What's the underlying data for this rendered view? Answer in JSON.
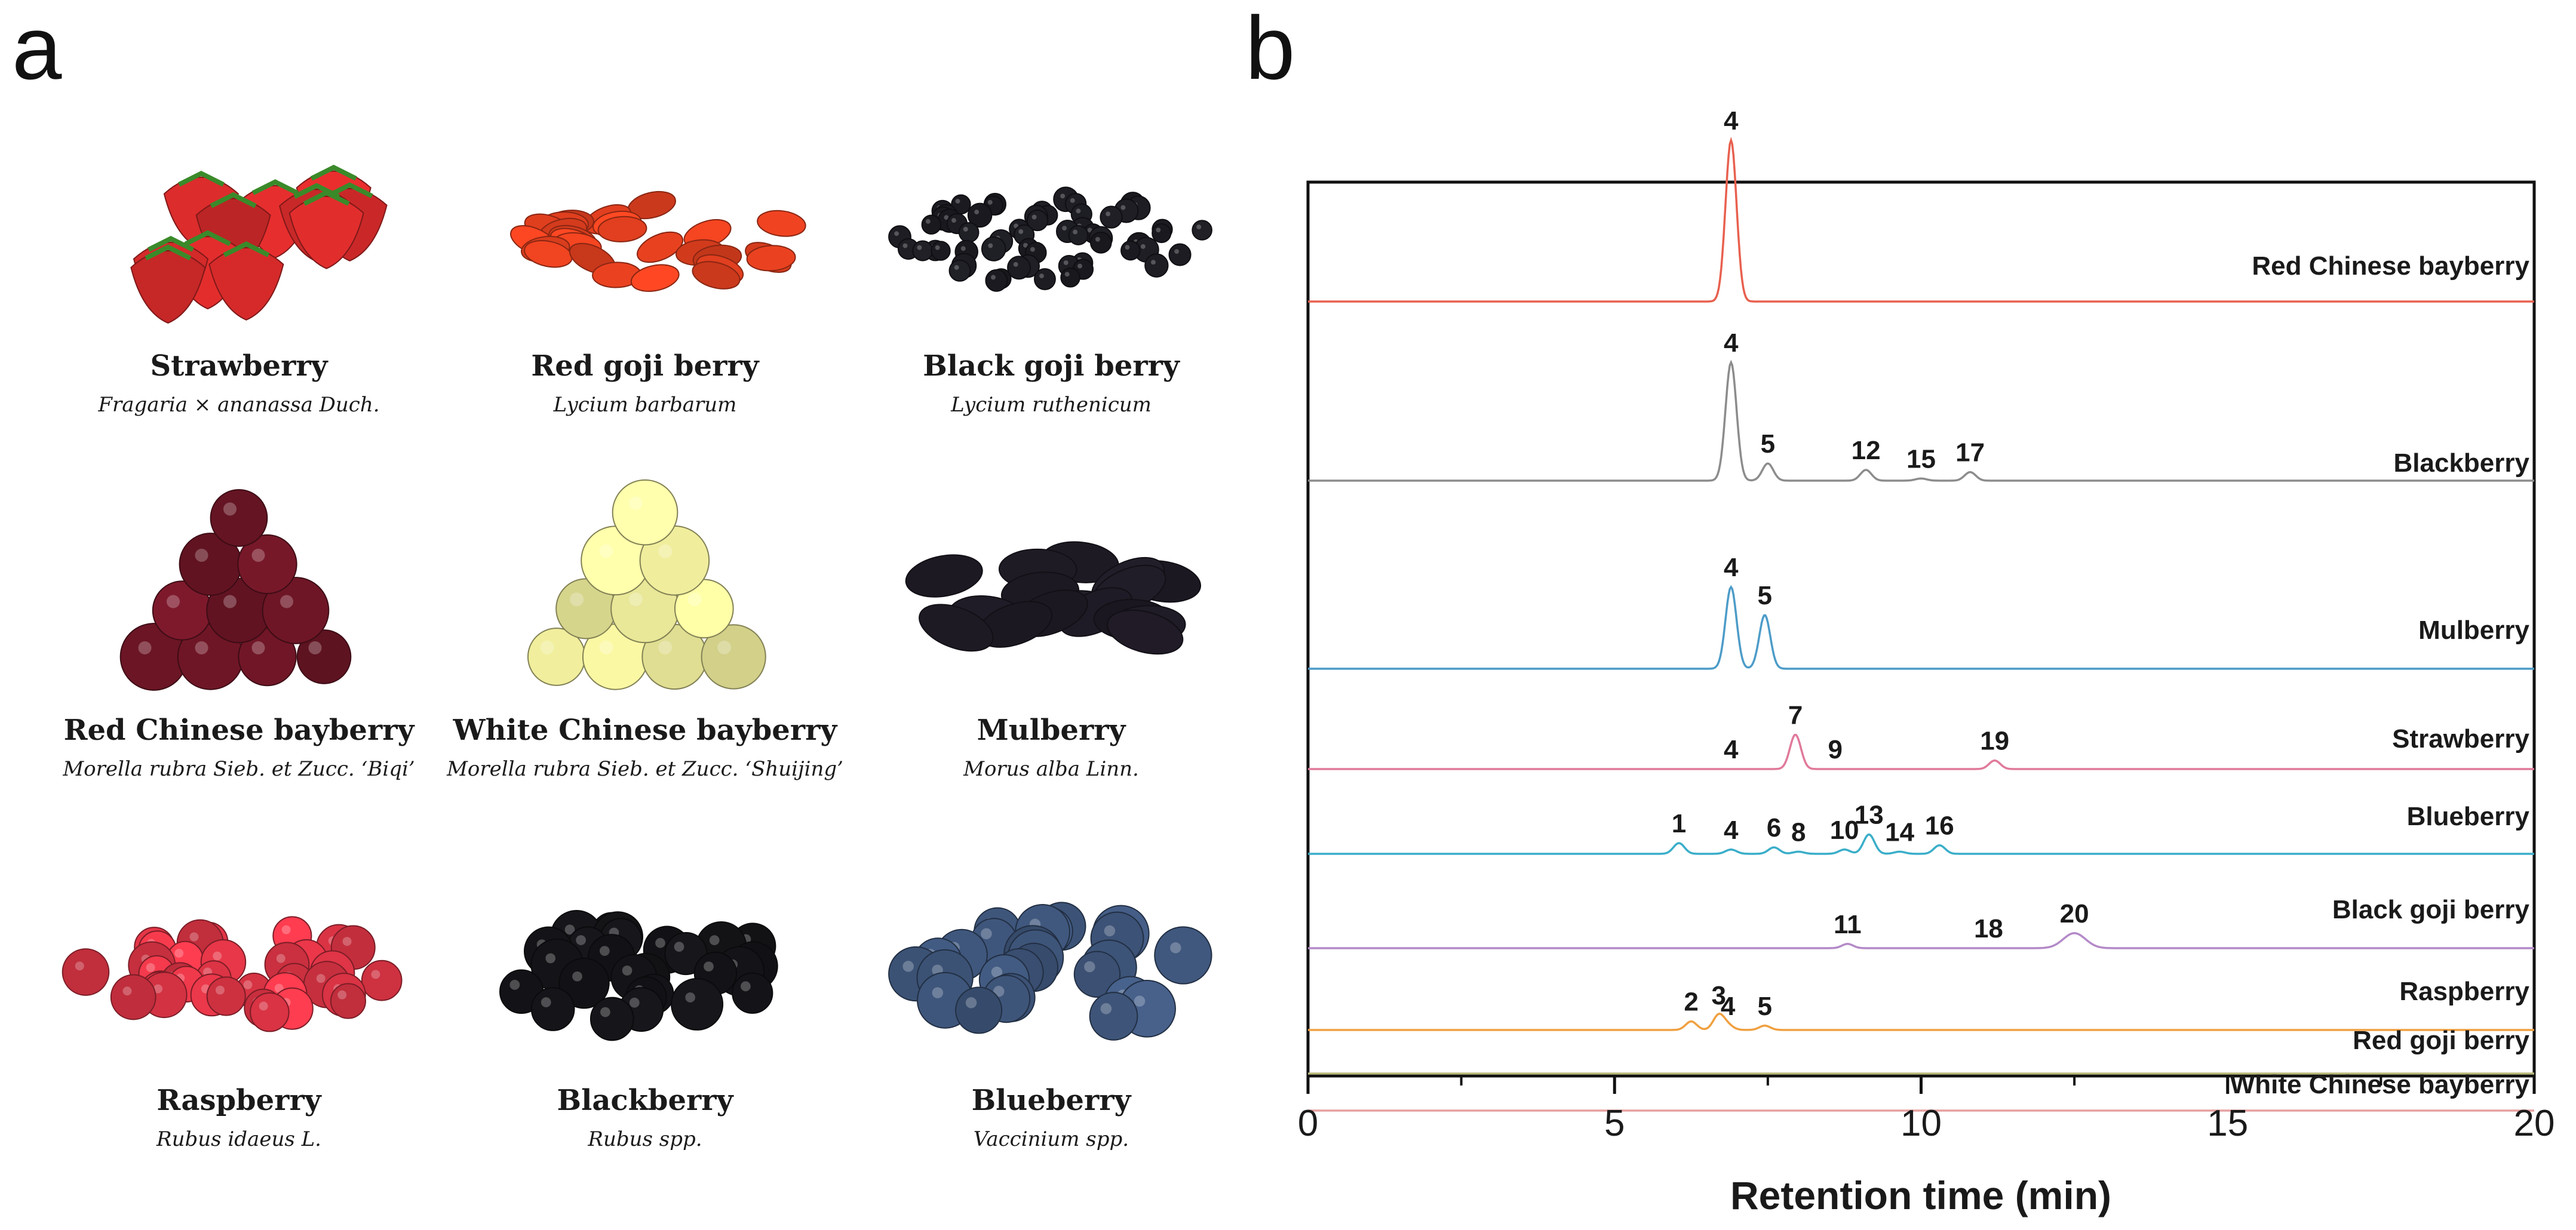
{
  "panel_a": {
    "letter": "a",
    "fruits": [
      {
        "name": "Strawberry",
        "latin": "Fragaria × ananassa Duch.",
        "color": "#d42a2a",
        "art": "strawberries"
      },
      {
        "name": "Red goji berry",
        "latin": "Lycium barbarum",
        "color": "#e4401f",
        "art": "red-goji"
      },
      {
        "name": "Black goji berry",
        "latin": "Lycium ruthenicum",
        "color": "#1c1c22",
        "art": "black-goji"
      },
      {
        "name": "Red Chinese bayberry",
        "latin": "Morella rubra Sieb. et Zucc. ‘Biqi’",
        "color": "#6e1626",
        "art": "red-bayberry"
      },
      {
        "name": "White Chinese bayberry",
        "latin": "Morella rubra Sieb. et Zucc. ‘Shuijing’",
        "color": "#ecea9a",
        "art": "white-bayberry"
      },
      {
        "name": "Mulberry",
        "latin": "Morus alba Linn.",
        "color": "#1e1a24",
        "art": "mulberry"
      },
      {
        "name": "Raspberry",
        "latin": "Rubus idaeus L.",
        "color": "#e03546",
        "art": "raspberry"
      },
      {
        "name": "Blackberry",
        "latin": "Rubus spp.",
        "color": "#141418",
        "art": "blackberry"
      },
      {
        "name": "Blueberry",
        "latin": "Vaccinium spp.",
        "color": "#3e557a",
        "art": "blueberry"
      }
    ]
  },
  "panel_b": {
    "letter": "b"
  },
  "chart_data": {
    "type": "line",
    "title": "",
    "xlabel": "Retention time (min)",
    "ylabel": "",
    "xlim": [
      0,
      20
    ],
    "xticks": [
      0,
      5,
      10,
      15,
      20
    ],
    "grid": false,
    "series": [
      {
        "name": "Red Chinese bayberry",
        "color": "#e8604f",
        "peaks": [
          {
            "label": "4",
            "rt": 6.9,
            "height": 0.75
          }
        ]
      },
      {
        "name": "Blackberry",
        "color": "#8c8c8c",
        "peaks": [
          {
            "label": "4",
            "rt": 6.9,
            "height": 0.55
          },
          {
            "label": "5",
            "rt": 7.5,
            "height": 0.08
          },
          {
            "label": "12",
            "rt": 9.1,
            "height": 0.05
          },
          {
            "label": "15",
            "rt": 10.0,
            "height": 0.01
          },
          {
            "label": "17",
            "rt": 10.8,
            "height": 0.04
          }
        ]
      },
      {
        "name": "Mulberry",
        "color": "#4d9cc8",
        "peaks": [
          {
            "label": "4",
            "rt": 6.9,
            "height": 0.38
          },
          {
            "label": "5",
            "rt": 7.45,
            "height": 0.25
          }
        ]
      },
      {
        "name": "Strawberry",
        "color": "#e07a9a",
        "peaks": [
          {
            "label": "4",
            "rt": 6.9,
            "height": 0.0
          },
          {
            "label": "7",
            "rt": 7.95,
            "height": 0.16
          },
          {
            "label": "9",
            "rt": 8.6,
            "height": 0.0
          },
          {
            "label": "19",
            "rt": 11.2,
            "height": 0.04
          }
        ]
      },
      {
        "name": "Blueberry",
        "color": "#3aaec9",
        "peaks": [
          {
            "label": "1",
            "rt": 6.05,
            "height": 0.05
          },
          {
            "label": "4",
            "rt": 6.9,
            "height": 0.02
          },
          {
            "label": "6",
            "rt": 7.6,
            "height": 0.03
          },
          {
            "label": "8",
            "rt": 8.0,
            "height": 0.01
          },
          {
            "label": "10",
            "rt": 8.75,
            "height": 0.02
          },
          {
            "label": "13",
            "rt": 9.15,
            "height": 0.09
          },
          {
            "label": "14",
            "rt": 9.65,
            "height": 0.01
          },
          {
            "label": "16",
            "rt": 10.3,
            "height": 0.04
          }
        ]
      },
      {
        "name": "Black goji berry",
        "color": "#b48ac8",
        "peaks": [
          {
            "label": "11",
            "rt": 8.8,
            "height": 0.02
          },
          {
            "label": "18",
            "rt": 11.1,
            "height": 0.0
          },
          {
            "label": "20",
            "rt": 12.5,
            "height": 0.07
          }
        ]
      },
      {
        "name": "Raspberry",
        "color": "#f0a040",
        "peaks": [
          {
            "label": "2",
            "rt": 6.25,
            "height": 0.04
          },
          {
            "label": "3",
            "rt": 6.7,
            "height": 0.07
          },
          {
            "label": "4",
            "rt": 6.85,
            "height": 0.02
          },
          {
            "label": "5",
            "rt": 7.45,
            "height": 0.02
          }
        ]
      },
      {
        "name": "Red goji berry",
        "color": "#b8b87a",
        "peaks": []
      },
      {
        "name": "White Chinese bayberry",
        "color": "#e5a0a0",
        "peaks": []
      }
    ]
  }
}
